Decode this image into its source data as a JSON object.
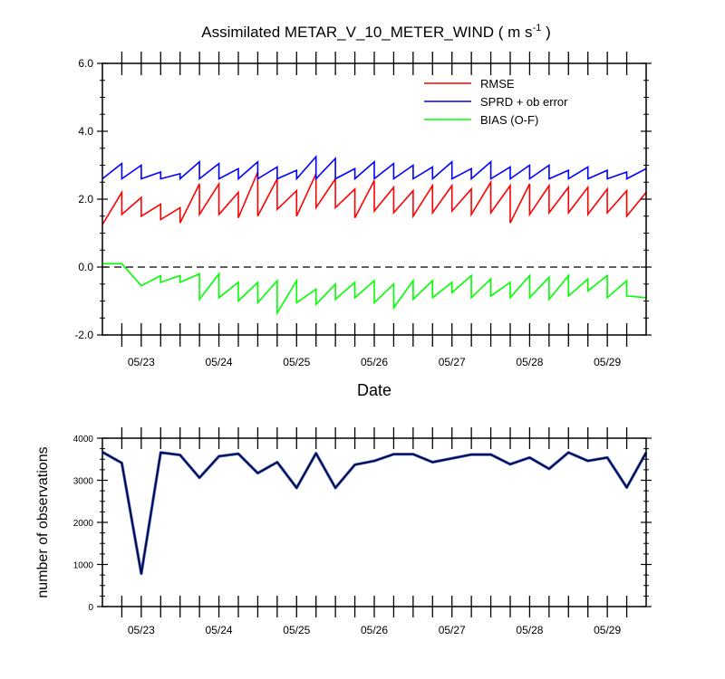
{
  "chart_data": [
    {
      "type": "line",
      "title": "Assimilated METAR_V_10_METER_WIND",
      "title_units": "( m s",
      "title_units_sup": "-1",
      "title_units_end": " )",
      "xlabel": "Date",
      "ylabel": "",
      "ylim": [
        -2.0,
        6.0
      ],
      "xlim": [
        0,
        28
      ],
      "yticks": [
        -2.0,
        0.0,
        2.0,
        4.0,
        6.0
      ],
      "ytick_labels": [
        "-2.0",
        "0.0",
        "2.0",
        "4.0",
        "6.0"
      ],
      "xtick_positions": [
        2,
        6,
        10,
        14,
        18,
        22,
        26
      ],
      "xtick_labels": [
        "05/23",
        "05/24",
        "05/25",
        "05/26",
        "05/27",
        "05/28",
        "05/29"
      ],
      "zero_line": true,
      "legend_position": "top-right",
      "series": [
        {
          "name": "RMSE",
          "color": "#ff0000",
          "x": [
            0,
            1,
            1,
            2,
            2,
            3,
            3,
            4,
            4,
            5,
            5,
            6,
            6,
            7,
            7,
            8,
            8,
            9,
            9,
            10,
            10,
            11,
            11,
            12,
            12,
            13,
            13,
            14,
            14,
            15,
            15,
            16,
            16,
            17,
            17,
            18,
            18,
            19,
            19,
            20,
            20,
            21,
            21,
            22,
            22,
            23,
            23,
            24,
            24,
            25,
            25,
            26,
            26,
            27,
            27,
            28
          ],
          "y": [
            1.25,
            2.2,
            1.55,
            2.05,
            1.5,
            1.85,
            1.4,
            1.75,
            1.3,
            2.45,
            1.55,
            2.45,
            1.55,
            2.2,
            1.45,
            2.8,
            1.5,
            2.6,
            1.7,
            2.25,
            1.5,
            2.75,
            1.75,
            2.6,
            1.75,
            2.3,
            1.45,
            2.55,
            1.65,
            2.35,
            1.6,
            2.25,
            1.5,
            2.4,
            1.6,
            2.4,
            1.65,
            2.3,
            1.55,
            2.5,
            1.6,
            2.4,
            1.3,
            2.45,
            1.55,
            2.4,
            1.6,
            2.35,
            1.6,
            2.35,
            1.55,
            2.3,
            1.6,
            2.25,
            1.5,
            2.2
          ]
        },
        {
          "name": "SPRD + ob error",
          "color": "#0000ff",
          "x": [
            0,
            1,
            1,
            2,
            2,
            3,
            3,
            4,
            4,
            5,
            5,
            6,
            6,
            7,
            7,
            8,
            8,
            9,
            9,
            10,
            10,
            11,
            11,
            12,
            12,
            13,
            13,
            14,
            14,
            15,
            15,
            16,
            16,
            17,
            17,
            18,
            18,
            19,
            19,
            20,
            20,
            21,
            21,
            22,
            22,
            23,
            23,
            24,
            24,
            25,
            25,
            26,
            26,
            27,
            27,
            28
          ],
          "y": [
            2.6,
            3.05,
            2.6,
            3.0,
            2.6,
            2.8,
            2.6,
            2.75,
            2.6,
            3.1,
            2.6,
            3.05,
            2.6,
            2.9,
            2.6,
            3.1,
            2.6,
            2.95,
            2.6,
            2.85,
            2.6,
            3.25,
            2.6,
            3.2,
            2.6,
            2.9,
            2.6,
            3.1,
            2.6,
            3.05,
            2.6,
            3.0,
            2.6,
            2.95,
            2.6,
            3.1,
            2.6,
            2.9,
            2.6,
            3.1,
            2.6,
            2.95,
            2.6,
            3.0,
            2.6,
            3.0,
            2.6,
            2.85,
            2.6,
            2.95,
            2.6,
            2.85,
            2.6,
            2.8,
            2.6,
            2.9
          ]
        },
        {
          "name": "BIAS (O-F)",
          "color": "#00ff00",
          "x": [
            0,
            1,
            2,
            3,
            3,
            4,
            4,
            5,
            5,
            6,
            6,
            7,
            7,
            8,
            8,
            9,
            9,
            10,
            10,
            11,
            11,
            12,
            12,
            13,
            13,
            14,
            14,
            15,
            15,
            16,
            16,
            17,
            17,
            18,
            18,
            19,
            19,
            20,
            20,
            21,
            21,
            22,
            22,
            23,
            23,
            24,
            24,
            25,
            25,
            26,
            26,
            27,
            27,
            28
          ],
          "y": [
            0.1,
            0.1,
            -0.55,
            -0.25,
            -0.45,
            -0.25,
            -0.45,
            -0.2,
            -0.95,
            -0.2,
            -0.9,
            -0.45,
            -1.0,
            -0.45,
            -1.05,
            -0.4,
            -1.35,
            -0.4,
            -1.05,
            -0.65,
            -1.1,
            -0.5,
            -0.95,
            -0.45,
            -0.9,
            -0.4,
            -1.05,
            -0.5,
            -1.2,
            -0.4,
            -0.95,
            -0.4,
            -0.9,
            -0.45,
            -0.75,
            -0.25,
            -0.9,
            -0.35,
            -0.85,
            -0.45,
            -0.9,
            -0.25,
            -0.9,
            -0.3,
            -0.95,
            -0.25,
            -0.85,
            -0.35,
            -0.7,
            -0.25,
            -0.9,
            -0.4,
            -0.85,
            -0.9
          ]
        }
      ]
    },
    {
      "type": "line",
      "title": "",
      "xlabel": "",
      "ylabel": "number of observations",
      "ylim": [
        0,
        4000
      ],
      "xlim": [
        0,
        28
      ],
      "yticks": [
        0,
        1000,
        2000,
        3000,
        4000
      ],
      "ytick_labels": [
        "0",
        "1000",
        "2000",
        "3000",
        "4000"
      ],
      "xtick_positions": [
        2,
        6,
        10,
        14,
        18,
        22,
        26
      ],
      "xtick_labels": [
        "05/23",
        "05/24",
        "05/25",
        "05/26",
        "05/27",
        "05/28",
        "05/29"
      ],
      "series": [
        {
          "name": "observations",
          "color": "#000033",
          "x": [
            0,
            1,
            2,
            3,
            4,
            5,
            6,
            7,
            8,
            9,
            10,
            11,
            12,
            13,
            14,
            15,
            16,
            17,
            18,
            19,
            20,
            21,
            22,
            23,
            24,
            25,
            26,
            27,
            28
          ],
          "y": [
            3670,
            3410,
            780,
            3660,
            3600,
            3060,
            3570,
            3630,
            3170,
            3430,
            2820,
            3640,
            2820,
            3370,
            3460,
            3620,
            3620,
            3430,
            3520,
            3610,
            3610,
            3380,
            3540,
            3270,
            3660,
            3460,
            3540,
            2830,
            3660
          ]
        }
      ]
    }
  ]
}
